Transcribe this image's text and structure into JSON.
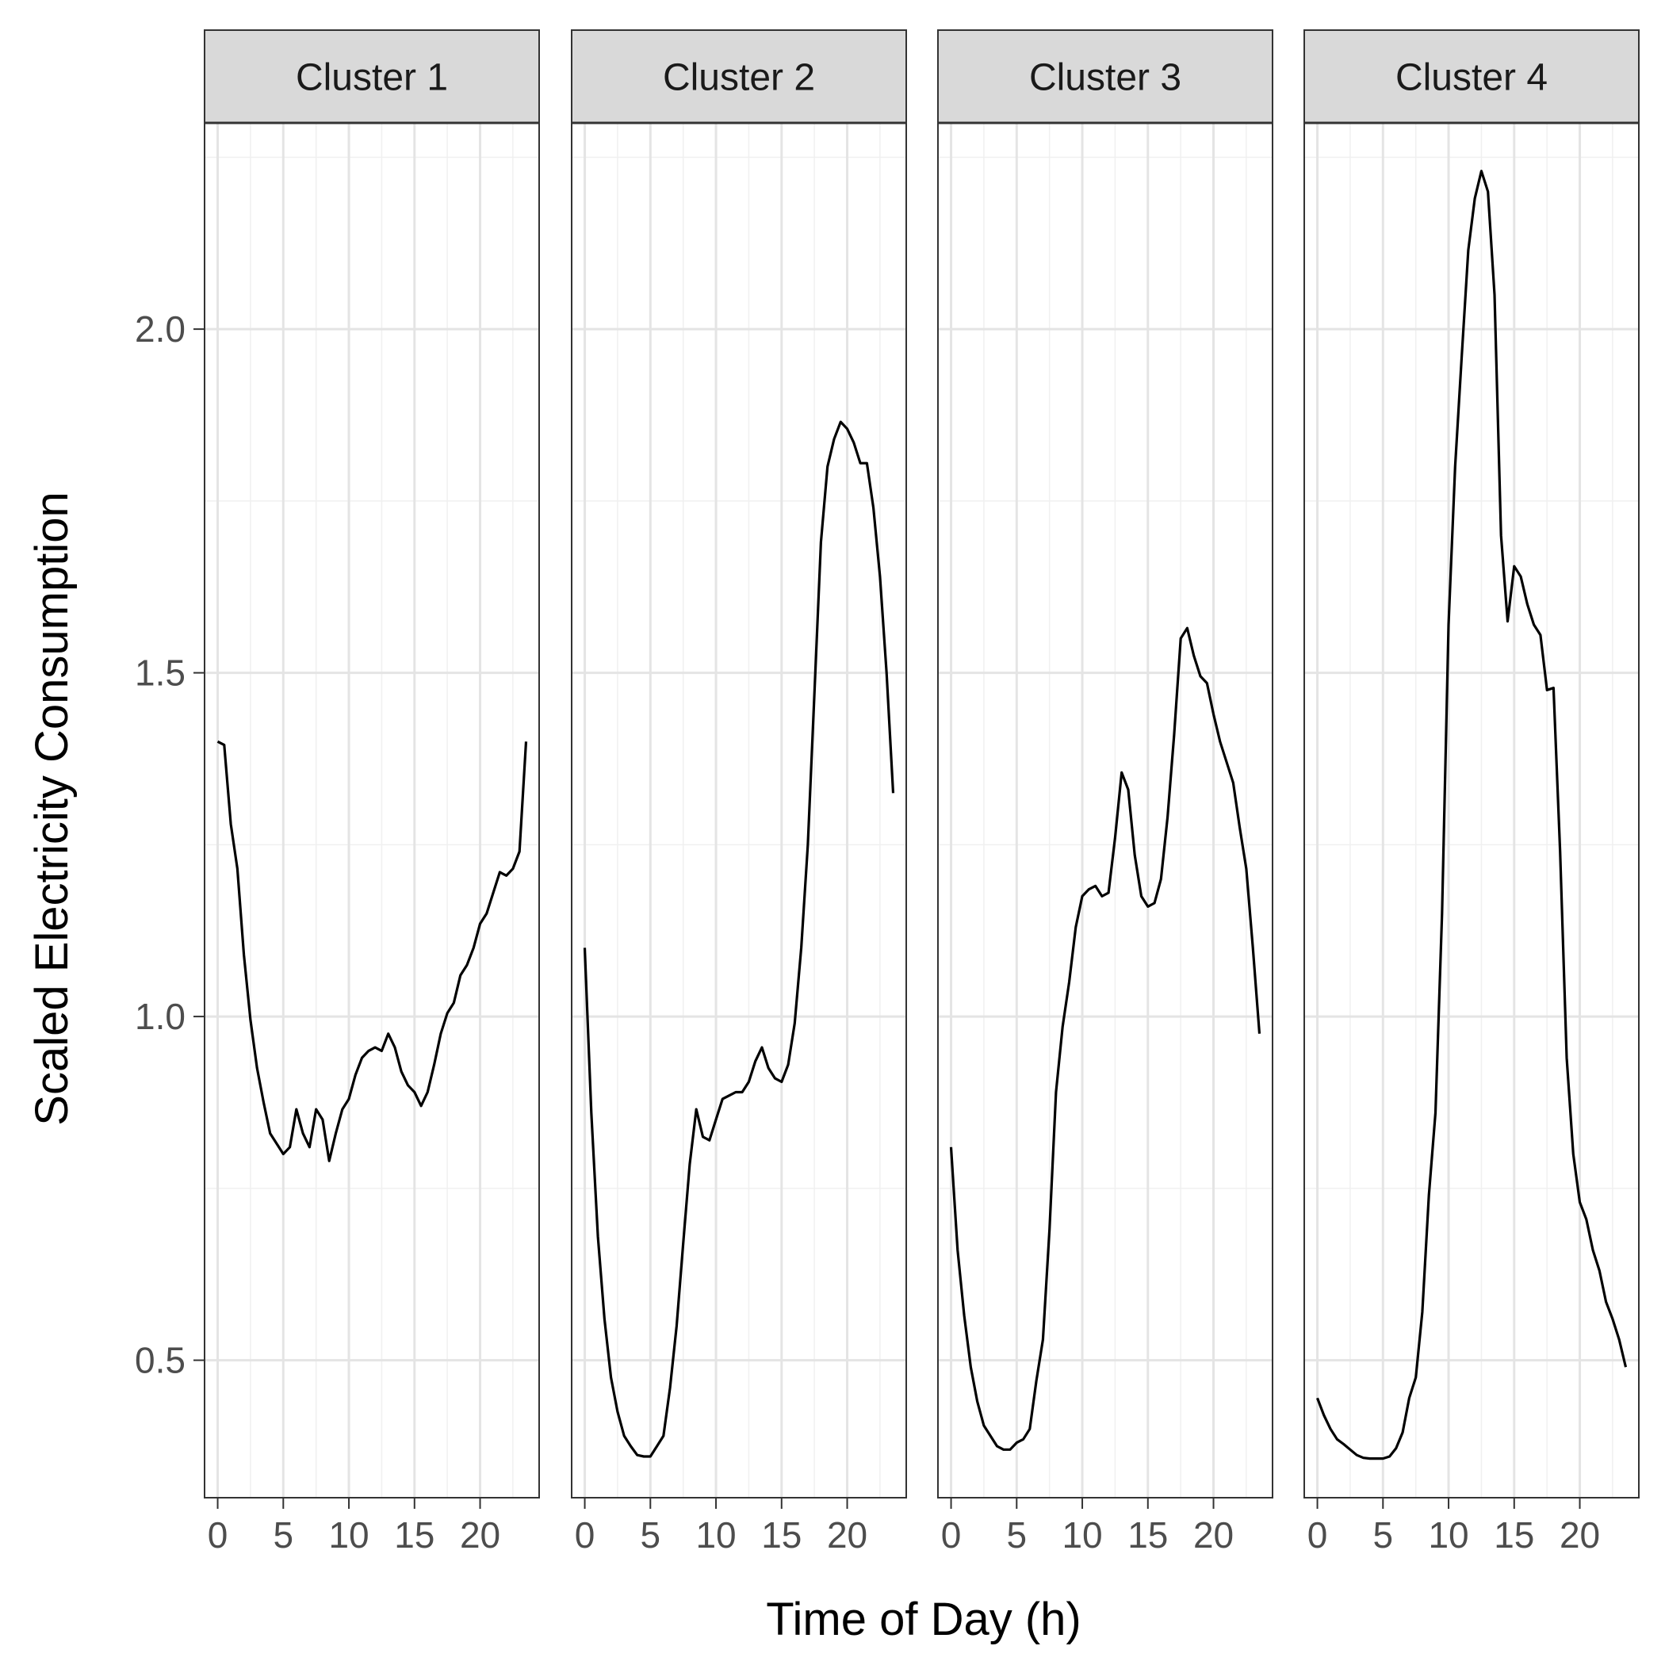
{
  "chart_data": {
    "type": "line",
    "layout": "facet",
    "xlabel": "Time of Day (h)",
    "ylabel": "Scaled Electricity Consumption",
    "xlim": [
      -1,
      24.5
    ],
    "ylim": [
      0.3,
      2.3
    ],
    "xticks": [
      0,
      5,
      10,
      15,
      20
    ],
    "yticks": [
      0.5,
      1.0,
      1.5,
      2.0
    ],
    "ytick_labels": [
      "0.5",
      "1.0",
      "1.5",
      "2.0"
    ],
    "grid": true,
    "line_color": "#000000",
    "panels": [
      {
        "name": "Cluster 1",
        "x": [
          0,
          0.5,
          1,
          1.5,
          2,
          2.5,
          3,
          3.5,
          4,
          4.5,
          5,
          5.5,
          6,
          6.5,
          7,
          7.5,
          8,
          8.5,
          9,
          9.5,
          10,
          10.5,
          11,
          11.5,
          12,
          12.5,
          13,
          13.5,
          14,
          14.5,
          15,
          15.5,
          16,
          16.5,
          17,
          17.5,
          18,
          18.5,
          19,
          19.5,
          20,
          20.5,
          21,
          21.5,
          22,
          22.5,
          23,
          23.5
        ],
        "y": [
          1.4,
          1.395,
          1.28,
          1.215,
          1.09,
          0.995,
          0.925,
          0.875,
          0.83,
          0.815,
          0.8,
          0.81,
          0.865,
          0.83,
          0.81,
          0.865,
          0.85,
          0.79,
          0.83,
          0.865,
          0.88,
          0.915,
          0.94,
          0.95,
          0.955,
          0.95,
          0.975,
          0.955,
          0.92,
          0.9,
          0.89,
          0.87,
          0.89,
          0.93,
          0.975,
          1.005,
          1.02,
          1.06,
          1.075,
          1.1,
          1.135,
          1.15,
          1.18,
          1.21,
          1.205,
          1.215,
          1.24,
          1.4
        ]
      },
      {
        "name": "Cluster 2",
        "x": [
          0,
          0.5,
          1,
          1.5,
          2,
          2.5,
          3,
          3.5,
          4,
          4.5,
          5,
          5.5,
          6,
          6.5,
          7,
          7.5,
          8,
          8.5,
          9,
          9.5,
          10,
          10.5,
          11,
          11.5,
          12,
          12.5,
          13,
          13.5,
          14,
          14.5,
          15,
          15.5,
          16,
          16.5,
          17,
          17.5,
          18,
          18.5,
          19,
          19.5,
          20,
          20.5,
          21,
          21.5,
          22,
          22.5,
          23,
          23.5
        ],
        "y": [
          1.1,
          0.86,
          0.68,
          0.56,
          0.475,
          0.425,
          0.39,
          0.375,
          0.362,
          0.36,
          0.36,
          0.375,
          0.39,
          0.46,
          0.55,
          0.67,
          0.785,
          0.865,
          0.825,
          0.82,
          0.85,
          0.88,
          0.885,
          0.89,
          0.89,
          0.905,
          0.935,
          0.955,
          0.925,
          0.91,
          0.905,
          0.93,
          0.99,
          1.1,
          1.25,
          1.47,
          1.69,
          1.8,
          1.84,
          1.865,
          1.855,
          1.835,
          1.805,
          1.805,
          1.74,
          1.64,
          1.5,
          1.325
        ]
      },
      {
        "name": "Cluster 3",
        "x": [
          0,
          0.5,
          1,
          1.5,
          2,
          2.5,
          3,
          3.5,
          4,
          4.5,
          5,
          5.5,
          6,
          6.5,
          7,
          7.5,
          8,
          8.5,
          9,
          9.5,
          10,
          10.5,
          11,
          11.5,
          12,
          12.5,
          13,
          13.5,
          14,
          14.5,
          15,
          15.5,
          16,
          16.5,
          17,
          17.5,
          18,
          18.5,
          19,
          19.5,
          20,
          20.5,
          21,
          21.5,
          22,
          22.5,
          23,
          23.5
        ],
        "y": [
          0.81,
          0.66,
          0.565,
          0.49,
          0.44,
          0.405,
          0.39,
          0.375,
          0.37,
          0.37,
          0.38,
          0.385,
          0.4,
          0.47,
          0.53,
          0.69,
          0.89,
          0.985,
          1.05,
          1.13,
          1.175,
          1.185,
          1.19,
          1.175,
          1.18,
          1.26,
          1.355,
          1.33,
          1.235,
          1.175,
          1.16,
          1.165,
          1.2,
          1.29,
          1.41,
          1.55,
          1.565,
          1.525,
          1.495,
          1.485,
          1.44,
          1.4,
          1.37,
          1.34,
          1.275,
          1.215,
          1.1,
          0.975
        ]
      },
      {
        "name": "Cluster 4",
        "x": [
          0,
          0.5,
          1,
          1.5,
          2,
          2.5,
          3,
          3.5,
          4,
          4.5,
          5,
          5.5,
          6,
          6.5,
          7,
          7.5,
          8,
          8.5,
          9,
          9.5,
          10,
          10.5,
          11,
          11.5,
          12,
          12.5,
          13,
          13.5,
          14,
          14.5,
          15,
          15.5,
          16,
          16.5,
          17,
          17.5,
          18,
          18.5,
          19,
          19.5,
          20,
          20.5,
          21,
          21.5,
          22,
          22.5,
          23,
          23.5
        ],
        "y": [
          0.445,
          0.42,
          0.4,
          0.385,
          0.378,
          0.37,
          0.362,
          0.358,
          0.357,
          0.357,
          0.357,
          0.36,
          0.372,
          0.395,
          0.445,
          0.475,
          0.57,
          0.74,
          0.86,
          1.15,
          1.57,
          1.8,
          1.96,
          2.115,
          2.19,
          2.23,
          2.2,
          2.05,
          1.7,
          1.575,
          1.655,
          1.64,
          1.6,
          1.57,
          1.555,
          1.475,
          1.478,
          1.24,
          0.94,
          0.8,
          0.73,
          0.705,
          0.66,
          0.63,
          0.585,
          0.56,
          0.53,
          0.49
        ]
      }
    ]
  }
}
